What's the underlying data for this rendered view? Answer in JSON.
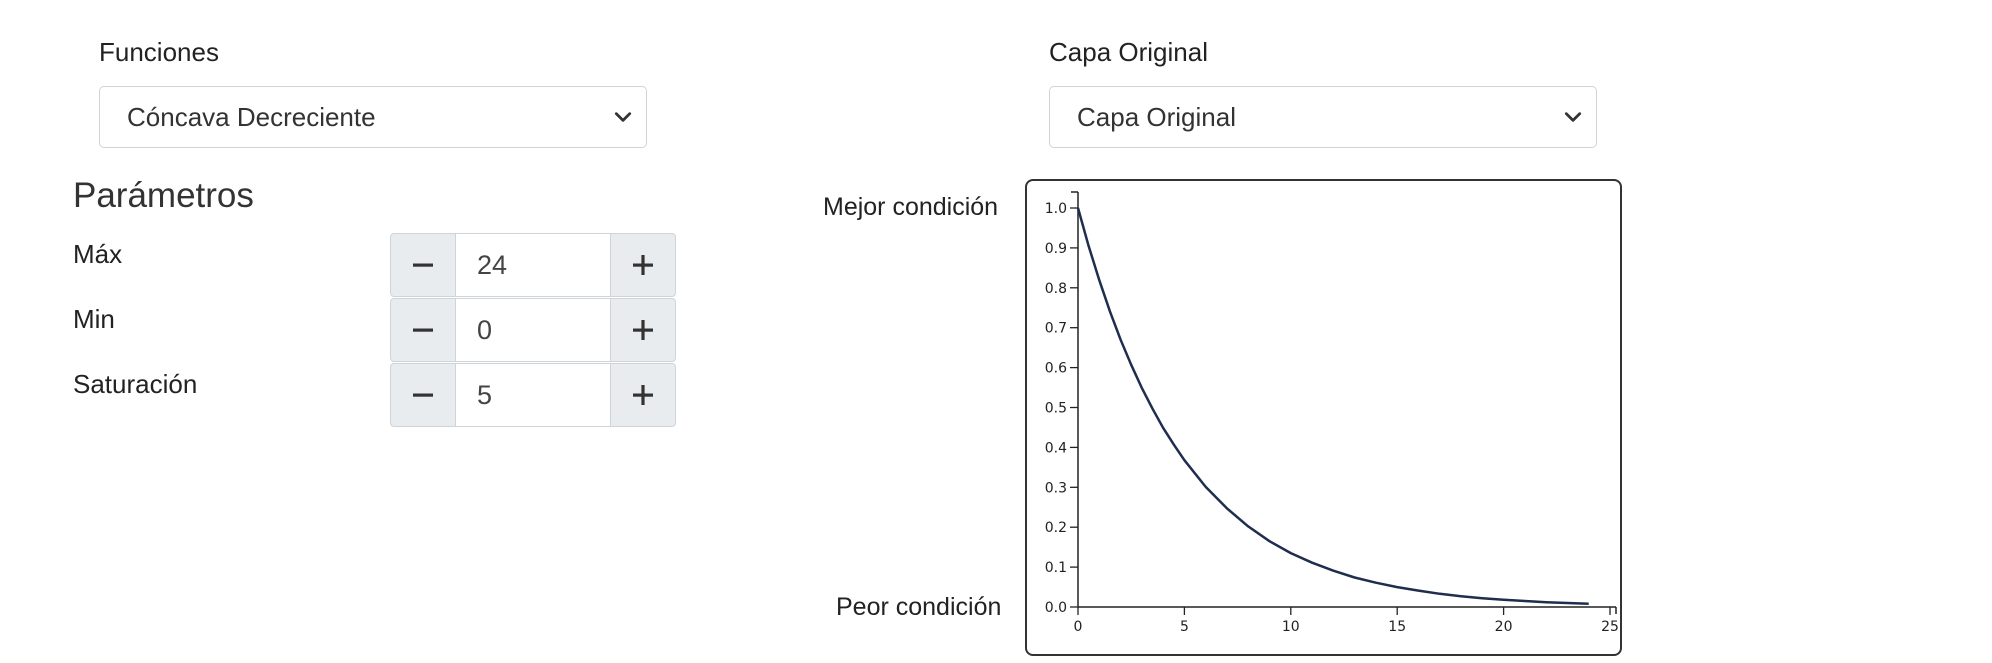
{
  "left_panel": {
    "functions_label": "Funciones",
    "functions_selected": "Cóncava Decreciente",
    "params_title": "Parámetros",
    "params": [
      {
        "label": "Máx",
        "value": "24"
      },
      {
        "label": "Min",
        "value": "0"
      },
      {
        "label": "Saturación",
        "value": "5"
      }
    ]
  },
  "right_panel": {
    "layer_label": "Capa Original",
    "layer_selected": "Capa Original",
    "best_label": "Mejor condición",
    "worst_label": "Peor condición"
  },
  "icons": {
    "select_arrow": "chevron-down-icon",
    "minus": "minus-icon",
    "plus": "plus-icon"
  },
  "colors": {
    "curve": "#1f2d4e",
    "button_bg": "#e9ecef",
    "border": "#ced4da"
  },
  "chart_data": {
    "type": "line",
    "title": "",
    "xlabel": "",
    "ylabel": "",
    "xlim": [
      0,
      25
    ],
    "ylim": [
      0,
      1
    ],
    "xticks": [
      0,
      5,
      10,
      15,
      20,
      25
    ],
    "yticks": [
      0.0,
      0.1,
      0.2,
      0.3,
      0.4,
      0.5,
      0.6,
      0.7,
      0.8,
      0.9,
      1.0
    ],
    "series": [
      {
        "x": [
          0,
          0.5,
          1,
          1.5,
          2,
          2.5,
          3,
          3.5,
          4,
          4.5,
          5,
          6,
          7,
          8,
          9,
          10,
          11,
          12,
          13,
          14,
          15,
          16,
          17,
          18,
          19,
          20,
          21,
          22,
          23,
          24
        ],
        "y": [
          1.0,
          0.905,
          0.819,
          0.741,
          0.67,
          0.607,
          0.549,
          0.497,
          0.449,
          0.407,
          0.368,
          0.301,
          0.247,
          0.202,
          0.165,
          0.135,
          0.111,
          0.091,
          0.074,
          0.061,
          0.05,
          0.041,
          0.033,
          0.027,
          0.022,
          0.018,
          0.015,
          0.012,
          0.01,
          0.008
        ]
      }
    ],
    "grid": false
  }
}
